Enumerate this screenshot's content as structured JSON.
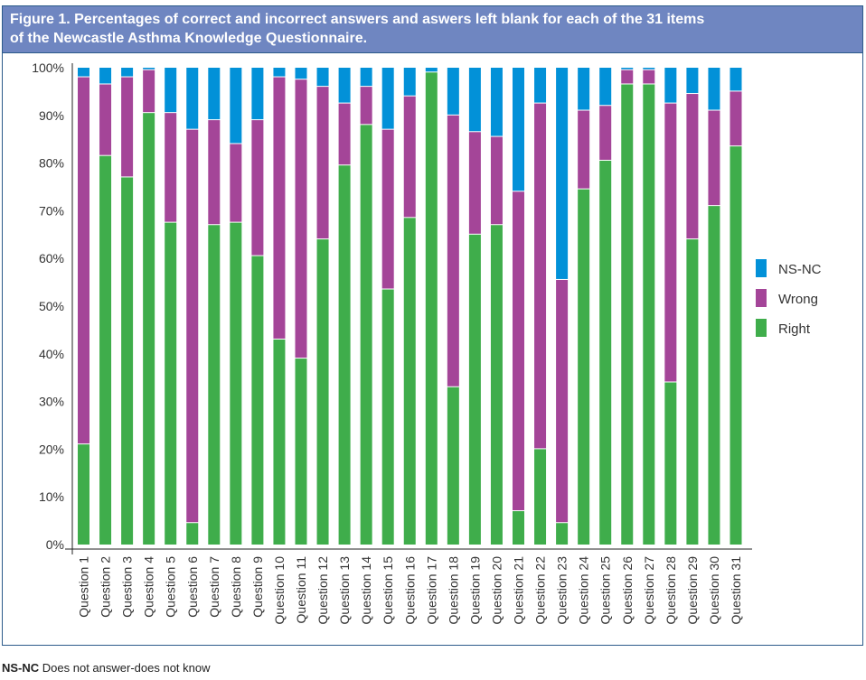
{
  "figure": {
    "title_line1": "Figure 1.  Percentages of correct and incorrect answers and aswers left blank for each of the 31 items",
    "title_line2": "of the Newcastle Asthma Knowledge Questionnaire.",
    "note_abbr": "NS-NC",
    "note_text": " Does not answer-does not know"
  },
  "colors": {
    "nsnc": "#0291d8",
    "wrong": "#a44598",
    "right": "#3fad4b"
  },
  "chart_data": {
    "type": "bar",
    "stacked": true,
    "percent": true,
    "title": "Percentages of correct and incorrect answers and aswers left blank for each of the 31 items of the Newcastle Asthma Knowledge Questionnaire.",
    "xlabel": "",
    "ylabel": "",
    "ylim": [
      0,
      100
    ],
    "yticks": [
      "0%",
      "10%",
      "20%",
      "30%",
      "40%",
      "50%",
      "60%",
      "70%",
      "80%",
      "90%",
      "100%"
    ],
    "legend_position": "right",
    "grid": false,
    "categories": [
      "Question 1",
      "Question 2",
      "Question 3",
      "Question 4",
      "Question 5",
      "Question 6",
      "Question 7",
      "Question 8",
      "Question 9",
      "Question 10",
      "Question 11",
      "Question 12",
      "Question 13",
      "Question 14",
      "Question 15",
      "Question 16",
      "Question 17",
      "Question 18",
      "Question 19",
      "Question 20",
      "Question 21",
      "Question 22",
      "Question 23",
      "Question 24",
      "Question 25",
      "Question 26",
      "Question 27",
      "Question 28",
      "Question 29",
      "Question 30",
      "Question 31"
    ],
    "series": [
      {
        "name": "Right",
        "values": [
          21,
          81.5,
          77,
          90.5,
          67.5,
          4.5,
          67,
          67.5,
          60.5,
          43,
          39,
          64,
          79.5,
          88,
          53.5,
          68.5,
          99,
          33,
          65,
          67,
          7,
          20,
          4.5,
          74.5,
          80.5,
          96.5,
          96.5,
          34,
          64,
          71,
          83.5
        ]
      },
      {
        "name": "Wrong",
        "values": [
          77,
          15,
          21,
          9,
          23,
          82.5,
          22,
          16.5,
          28.5,
          55,
          58.5,
          32,
          13,
          8,
          33.5,
          25.5,
          0,
          57,
          21.5,
          18.5,
          67,
          72.5,
          51,
          16.5,
          11.5,
          3,
          3,
          58.5,
          30.5,
          20,
          11.5
        ]
      },
      {
        "name": "NS-NC",
        "values": [
          2,
          3.5,
          2,
          0.5,
          9.5,
          13,
          11,
          16,
          11,
          2,
          2.5,
          4,
          7.5,
          4,
          13,
          6,
          1,
          10,
          13.5,
          14.5,
          26,
          7.5,
          44.5,
          9,
          8,
          0.5,
          0.5,
          7.5,
          5.5,
          9,
          5
        ]
      }
    ],
    "legend": [
      "NS-NC",
      "Wrong",
      "Right"
    ]
  }
}
